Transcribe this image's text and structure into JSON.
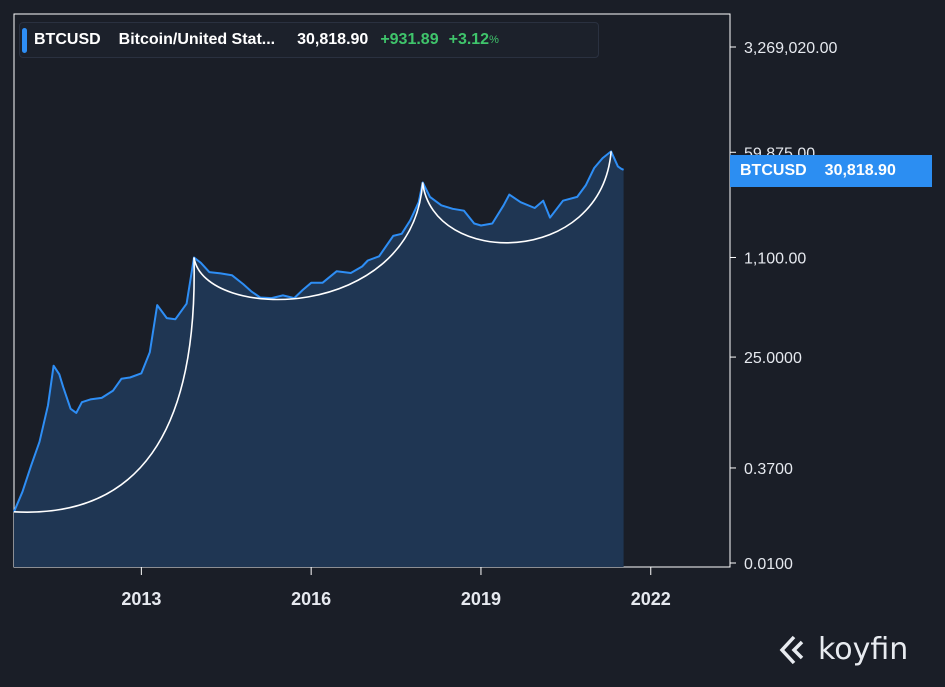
{
  "legend": {
    "symbol": "BTCUSD",
    "name": "Bitcoin/United Stat...",
    "price": "30,818.90",
    "change": "+931.89",
    "change_pct": "+3.12",
    "pct_sign": "%"
  },
  "price_tag": {
    "symbol": "BTCUSD",
    "value": "30,818.90"
  },
  "brand": {
    "name": "koyfin",
    "icon": "koyfin-logo-icon"
  },
  "colors": {
    "background": "#1a1e27",
    "series": "#2e8ef5",
    "fill": "#1f3653",
    "positive": "#3fc46b",
    "arc": "#ffffff"
  },
  "chart_data": {
    "type": "area",
    "y_scale": "log",
    "ylim": [
      0.01,
      3269020
    ],
    "y_ticks": [
      {
        "value": 3269020,
        "label": "3,269,020.00"
      },
      {
        "value": 59875,
        "label": "59,875.00"
      },
      {
        "value": 1100,
        "label": "1,100.00"
      },
      {
        "value": 25,
        "label": "25.0000"
      },
      {
        "value": 0.37,
        "label": "0.3700"
      },
      {
        "value": 0.01,
        "label": "0.0100"
      }
    ],
    "xlim": [
      2010.75,
      2023.4
    ],
    "x_ticks": [
      {
        "value": 2013,
        "label": "2013"
      },
      {
        "value": 2016,
        "label": "2016"
      },
      {
        "value": 2019,
        "label": "2019"
      },
      {
        "value": 2022,
        "label": "2022"
      }
    ],
    "series": [
      {
        "values": [
          [
            2010.75,
            0.07
          ],
          [
            2010.9,
            0.15
          ],
          [
            2011.05,
            0.4
          ],
          [
            2011.2,
            1.0
          ],
          [
            2011.35,
            4.0
          ],
          [
            2011.45,
            18.0
          ],
          [
            2011.55,
            13.0
          ],
          [
            2011.62,
            8.0
          ],
          [
            2011.75,
            3.5
          ],
          [
            2011.85,
            3.0
          ],
          [
            2011.95,
            4.5
          ],
          [
            2012.1,
            5.0
          ],
          [
            2012.3,
            5.3
          ],
          [
            2012.5,
            7.0
          ],
          [
            2012.65,
            11.0
          ],
          [
            2012.8,
            11.5
          ],
          [
            2013.0,
            13.5
          ],
          [
            2013.15,
            30.0
          ],
          [
            2013.28,
            180.0
          ],
          [
            2013.45,
            110.0
          ],
          [
            2013.6,
            105.0
          ],
          [
            2013.8,
            190.0
          ],
          [
            2013.93,
            1100.0
          ],
          [
            2014.05,
            900.0
          ],
          [
            2014.2,
            630.0
          ],
          [
            2014.4,
            600.0
          ],
          [
            2014.6,
            560.0
          ],
          [
            2014.8,
            400.0
          ],
          [
            2014.95,
            300.0
          ],
          [
            2015.1,
            240.0
          ],
          [
            2015.3,
            235.0
          ],
          [
            2015.5,
            260.0
          ],
          [
            2015.7,
            235.0
          ],
          [
            2015.85,
            320.0
          ],
          [
            2016.0,
            420.0
          ],
          [
            2016.2,
            420.0
          ],
          [
            2016.45,
            650.0
          ],
          [
            2016.7,
            610.0
          ],
          [
            2016.9,
            780.0
          ],
          [
            2017.0,
            980.0
          ],
          [
            2017.2,
            1150.0
          ],
          [
            2017.45,
            2500.0
          ],
          [
            2017.6,
            2700.0
          ],
          [
            2017.75,
            4500.0
          ],
          [
            2017.9,
            9000.0
          ],
          [
            2017.97,
            19000.0
          ],
          [
            2018.1,
            11000.0
          ],
          [
            2018.3,
            8000.0
          ],
          [
            2018.5,
            7000.0
          ],
          [
            2018.7,
            6500.0
          ],
          [
            2018.88,
            4000.0
          ],
          [
            2019.0,
            3700.0
          ],
          [
            2019.2,
            4000.0
          ],
          [
            2019.4,
            8000.0
          ],
          [
            2019.5,
            12000.0
          ],
          [
            2019.7,
            9000.0
          ],
          [
            2019.95,
            7200.0
          ],
          [
            2020.1,
            9500.0
          ],
          [
            2020.22,
            5000.0
          ],
          [
            2020.45,
            9500.0
          ],
          [
            2020.7,
            11000.0
          ],
          [
            2020.85,
            17000.0
          ],
          [
            2021.0,
            33000.0
          ],
          [
            2021.15,
            48000.0
          ],
          [
            2021.3,
            62000.0
          ],
          [
            2021.42,
            35000.0
          ],
          [
            2021.48,
            32000.0
          ],
          [
            2021.52,
            30818.9
          ]
        ]
      }
    ],
    "arcs": [
      {
        "from": [
          2010.75,
          0.07
        ],
        "to": [
          2013.93,
          1100.0
        ],
        "peak_bulge_y": "down"
      },
      {
        "from": [
          2013.93,
          1100.0
        ],
        "to": [
          2017.97,
          19000.0
        ]
      },
      {
        "from": [
          2017.97,
          19000.0
        ],
        "to": [
          2021.3,
          62000.0
        ]
      }
    ]
  }
}
